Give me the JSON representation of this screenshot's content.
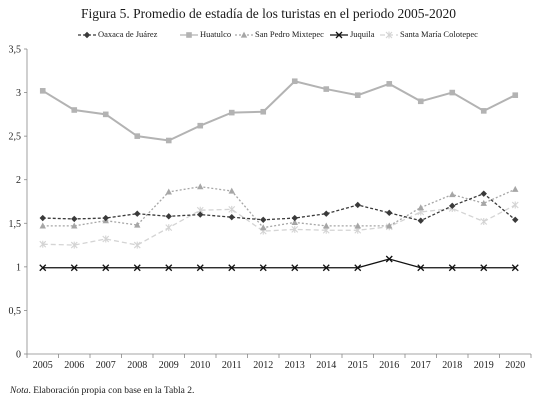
{
  "chart_data": {
    "type": "line",
    "title": "Figura 5. Promedio de estadía de los turistas en el periodo 2005-2020",
    "xlabel": "",
    "ylabel": "",
    "categories": [
      "2005",
      "2006",
      "2007",
      "2008",
      "2009",
      "2010",
      "2011",
      "2012",
      "2013",
      "2014",
      "2015",
      "2016",
      "2017",
      "2018",
      "2019",
      "2020"
    ],
    "ylim": [
      0,
      3.5
    ],
    "yticks": [
      0,
      0.5,
      1,
      1.5,
      2,
      2.5,
      3,
      3.5
    ],
    "ytick_labels": [
      "0",
      "0,5",
      "1",
      "1,5",
      "2",
      "2,5",
      "3",
      "3,5"
    ],
    "grid": false,
    "legend_position": "top",
    "series": [
      {
        "name": "Oaxaca de Juárez",
        "color": "#3a3a3a",
        "dash": "3,2",
        "marker": "diamond",
        "values": [
          1.56,
          1.55,
          1.56,
          1.61,
          1.58,
          1.6,
          1.57,
          1.54,
          1.56,
          1.61,
          1.71,
          1.62,
          1.53,
          1.7,
          1.84,
          1.54
        ]
      },
      {
        "name": "Huatulco",
        "color": "#b3b3b3",
        "dash": "",
        "marker": "square",
        "values": [
          3.02,
          2.8,
          2.75,
          2.5,
          2.45,
          2.62,
          2.77,
          2.78,
          3.13,
          3.04,
          2.97,
          3.1,
          2.9,
          3.0,
          2.79,
          2.97
        ]
      },
      {
        "name": "San Pedro Mixtepec",
        "color": "#a6a6a6",
        "dash": "2,2",
        "marker": "triangle",
        "values": [
          1.47,
          1.47,
          1.53,
          1.48,
          1.86,
          1.92,
          1.87,
          1.45,
          1.51,
          1.47,
          1.47,
          1.47,
          1.68,
          1.83,
          1.73,
          1.89
        ]
      },
      {
        "name": "Juquila",
        "color": "#111111",
        "dash": "",
        "marker": "x",
        "values": [
          0.99,
          0.99,
          0.99,
          0.99,
          0.99,
          0.99,
          0.99,
          0.99,
          0.99,
          0.99,
          0.99,
          1.09,
          0.99,
          0.99,
          0.99,
          0.99
        ]
      },
      {
        "name": "Santa María Colotepec",
        "color": "#d4d4d4",
        "dash": "5,3",
        "marker": "star",
        "values": [
          1.26,
          1.25,
          1.32,
          1.25,
          1.45,
          1.65,
          1.66,
          1.41,
          1.43,
          1.42,
          1.42,
          1.46,
          1.63,
          1.67,
          1.52,
          1.71
        ]
      }
    ]
  },
  "note": {
    "prefix": "Nota",
    "text": ". Elaboración propia con base en la Tabla 2."
  }
}
